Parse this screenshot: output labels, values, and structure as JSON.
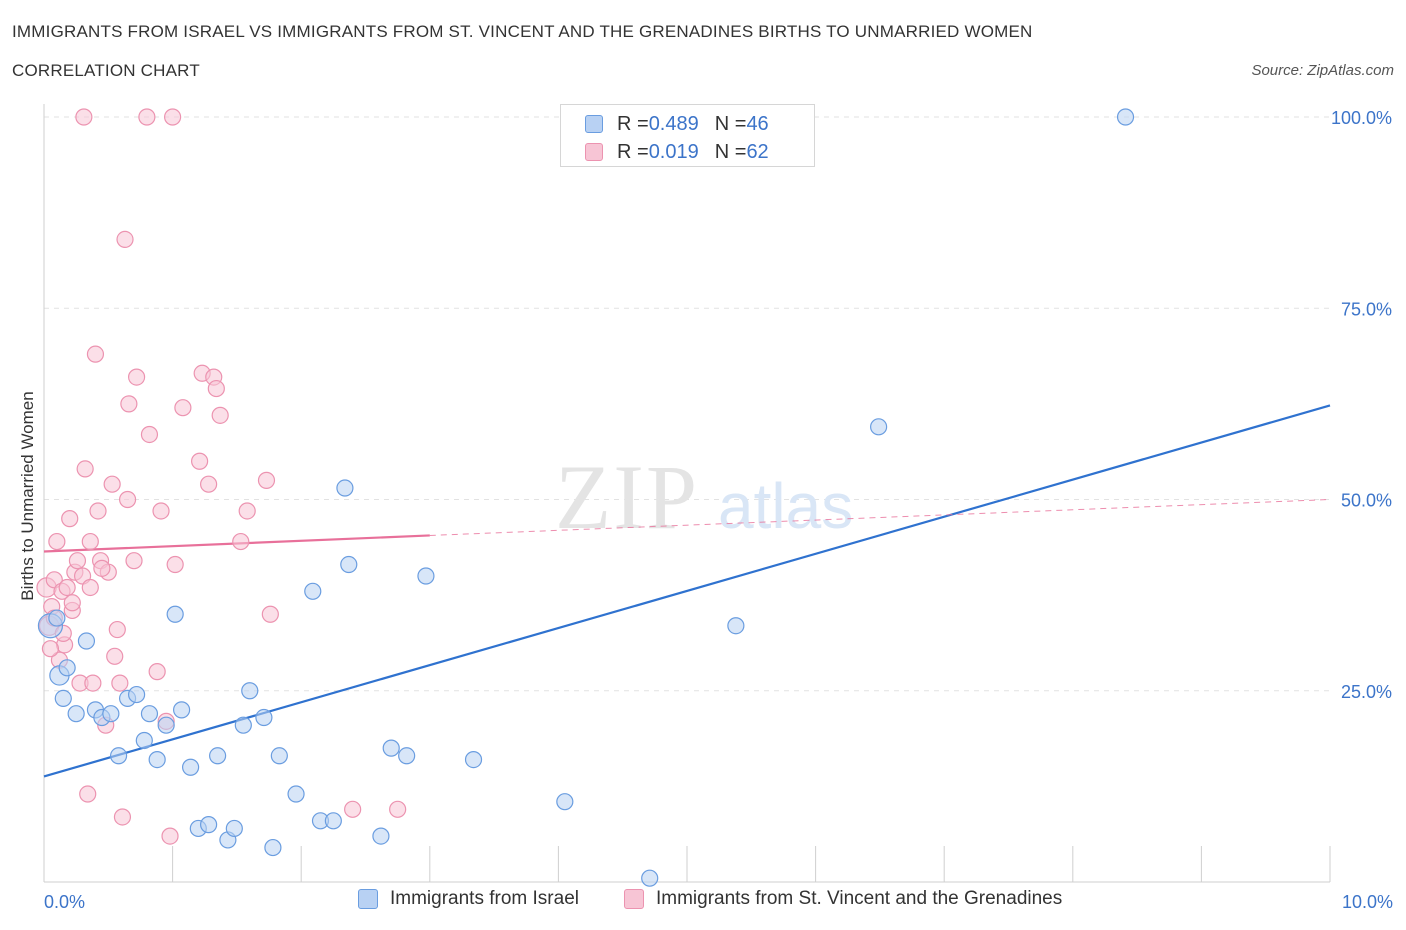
{
  "header": {
    "title": "IMMIGRANTS FROM ISRAEL VS IMMIGRANTS FROM ST. VINCENT AND THE GRENADINES BIRTHS TO UNMARRIED WOMEN",
    "subtitle": "CORRELATION CHART",
    "source": "Source: ZipAtlas.com"
  },
  "colors": {
    "blue_fill": "#b8d1f3",
    "blue_stroke": "#6a9de0",
    "blue_line": "#2f72cf",
    "pink_fill": "#f7c5d5",
    "pink_stroke": "#ec93b0",
    "pink_line": "#e8709a",
    "tick_label": "#3c74c9",
    "grid": "#e2e2e2"
  },
  "legend": {
    "rows": [
      {
        "r_label": "R = ",
        "r_value": "0.489",
        "n_label": "N = ",
        "n_value": "46"
      },
      {
        "r_label": "R = ",
        "r_value": "0.019",
        "n_label": "N = ",
        "n_value": "62"
      }
    ]
  },
  "bottom_legend": {
    "israel": "Immigrants from Israel",
    "svg": "Immigrants from St. Vincent and the Grenadines"
  },
  "watermark": {
    "zip": "ZIP",
    "atlas": "atlas"
  },
  "chart_data": {
    "type": "scatter",
    "title": "IMMIGRANTS FROM ISRAEL VS IMMIGRANTS FROM ST. VINCENT AND THE GRENADINES BIRTHS TO UNMARRIED WOMEN",
    "xlabel": "",
    "ylabel": "Births to Unmarried Women",
    "xlim": [
      0,
      10
    ],
    "ylim": [
      0,
      100
    ],
    "x_tick_labels": [
      "0.0%",
      "10.0%"
    ],
    "y_ticks": [
      25,
      50,
      75,
      100
    ],
    "y_tick_labels": [
      "25.0%",
      "50.0%",
      "75.0%",
      "100.0%"
    ],
    "grid": true,
    "legend_position": "top-center",
    "series": [
      {
        "name": "Immigrants from Israel",
        "color": "blue",
        "R": 0.489,
        "N": 46,
        "trend": {
          "x0": 0,
          "y0": 13.8,
          "x1": 10,
          "y1": 62.3
        },
        "points": [
          [
            0.05,
            33.5,
            1.5
          ],
          [
            0.12,
            27.0,
            1.2
          ],
          [
            0.15,
            24.0,
            1.0
          ],
          [
            0.1,
            34.5,
            1.0
          ],
          [
            0.18,
            28.0,
            1.0
          ],
          [
            0.25,
            22.0,
            1.0
          ],
          [
            0.33,
            31.5,
            1.0
          ],
          [
            0.4,
            22.5,
            1.0
          ],
          [
            0.45,
            21.5,
            1.0
          ],
          [
            0.52,
            22.0,
            1.0
          ],
          [
            0.58,
            16.5,
            1.0
          ],
          [
            0.65,
            24.0,
            1.0
          ],
          [
            0.72,
            24.5,
            1.0
          ],
          [
            0.78,
            18.5,
            1.0
          ],
          [
            0.82,
            22.0,
            1.0
          ],
          [
            0.88,
            16.0,
            1.0
          ],
          [
            0.95,
            20.5,
            1.0
          ],
          [
            1.02,
            35.0,
            1.0
          ],
          [
            1.07,
            22.5,
            1.0
          ],
          [
            1.14,
            15.0,
            1.0
          ],
          [
            1.2,
            7.0,
            1.0
          ],
          [
            1.28,
            7.5,
            1.0
          ],
          [
            1.35,
            16.5,
            1.0
          ],
          [
            1.43,
            5.5,
            1.0
          ],
          [
            1.48,
            7.0,
            1.0
          ],
          [
            1.55,
            20.5,
            1.0
          ],
          [
            1.6,
            25.0,
            1.0
          ],
          [
            1.71,
            21.5,
            1.0
          ],
          [
            1.78,
            4.5,
            1.0
          ],
          [
            1.83,
            16.5,
            1.0
          ],
          [
            1.96,
            11.5,
            1.0
          ],
          [
            2.09,
            38.0,
            1.0
          ],
          [
            2.15,
            8.0,
            1.0
          ],
          [
            2.25,
            8.0,
            1.0
          ],
          [
            2.34,
            51.5,
            1.0
          ],
          [
            2.37,
            41.5,
            1.0
          ],
          [
            2.62,
            6.0,
            1.0
          ],
          [
            2.7,
            17.5,
            1.0
          ],
          [
            2.82,
            16.5,
            1.0
          ],
          [
            2.97,
            40.0,
            1.0
          ],
          [
            3.34,
            16.0,
            1.0
          ],
          [
            4.05,
            10.5,
            1.0
          ],
          [
            4.71,
            0.5,
            1.0
          ],
          [
            5.38,
            33.5,
            1.0
          ],
          [
            6.49,
            59.5,
            1.0
          ],
          [
            8.41,
            100.0,
            1.0
          ]
        ]
      },
      {
        "name": "Immigrants from St. Vincent and the Grenadines",
        "color": "pink",
        "R": 0.019,
        "N": 62,
        "trend": {
          "x0": 0,
          "y0": 43.2,
          "x1": 3.0,
          "y1": 45.3,
          "dash_to_x": 10,
          "dash_to_y": 50.0
        },
        "points": [
          [
            0.02,
            38.5,
            1.2
          ],
          [
            0.04,
            33.5,
            1.2
          ],
          [
            0.06,
            36.0,
            1.0
          ],
          [
            0.08,
            39.5,
            1.0
          ],
          [
            0.1,
            44.5,
            1.0
          ],
          [
            0.12,
            29.0,
            1.0
          ],
          [
            0.14,
            38.0,
            1.0
          ],
          [
            0.16,
            31.0,
            1.0
          ],
          [
            0.18,
            38.5,
            1.0
          ],
          [
            0.2,
            47.5,
            1.0
          ],
          [
            0.22,
            35.5,
            1.0
          ],
          [
            0.24,
            40.5,
            1.0
          ],
          [
            0.26,
            42.0,
            1.0
          ],
          [
            0.28,
            26.0,
            1.0
          ],
          [
            0.31,
            100.0,
            1.0
          ],
          [
            0.32,
            54.0,
            1.0
          ],
          [
            0.34,
            11.5,
            1.0
          ],
          [
            0.36,
            44.5,
            1.0
          ],
          [
            0.38,
            26.0,
            1.0
          ],
          [
            0.4,
            69.0,
            1.0
          ],
          [
            0.42,
            48.5,
            1.0
          ],
          [
            0.44,
            42.0,
            1.0
          ],
          [
            0.48,
            20.5,
            1.0
          ],
          [
            0.5,
            40.5,
            1.0
          ],
          [
            0.53,
            52.0,
            1.0
          ],
          [
            0.55,
            29.5,
            1.0
          ],
          [
            0.57,
            33.0,
            1.0
          ],
          [
            0.59,
            26.0,
            1.0
          ],
          [
            0.61,
            8.5,
            1.0
          ],
          [
            0.63,
            84.0,
            1.0
          ],
          [
            0.65,
            50.0,
            1.0
          ],
          [
            0.66,
            62.5,
            1.0
          ],
          [
            0.72,
            66.0,
            1.0
          ],
          [
            0.8,
            100.0,
            1.0
          ],
          [
            0.82,
            58.5,
            1.0
          ],
          [
            0.88,
            27.5,
            1.0
          ],
          [
            0.91,
            48.5,
            1.0
          ],
          [
            0.95,
            21.0,
            1.0
          ],
          [
            0.98,
            6.0,
            1.0
          ],
          [
            1.02,
            41.5,
            1.0
          ],
          [
            1.0,
            100.0,
            1.0
          ],
          [
            1.08,
            62.0,
            1.0
          ],
          [
            1.21,
            55.0,
            1.0
          ],
          [
            1.23,
            66.5,
            1.0
          ],
          [
            1.28,
            52.0,
            1.0
          ],
          [
            1.32,
            66.0,
            1.0
          ],
          [
            1.34,
            64.5,
            1.0
          ],
          [
            1.37,
            61.0,
            1.0
          ],
          [
            1.53,
            44.5,
            1.0
          ],
          [
            1.58,
            48.5,
            1.0
          ],
          [
            1.73,
            52.5,
            1.0
          ],
          [
            1.76,
            35.0,
            1.0
          ],
          [
            2.4,
            9.5,
            1.0
          ],
          [
            2.75,
            9.5,
            1.0
          ],
          [
            0.15,
            32.5,
            1.0
          ],
          [
            0.3,
            40.0,
            1.0
          ],
          [
            0.45,
            41.0,
            1.0
          ],
          [
            0.7,
            42.0,
            1.0
          ],
          [
            0.05,
            30.5,
            1.0
          ],
          [
            0.22,
            36.5,
            1.0
          ],
          [
            0.36,
            38.5,
            1.0
          ],
          [
            0.08,
            34.5,
            1.0
          ]
        ]
      }
    ]
  }
}
